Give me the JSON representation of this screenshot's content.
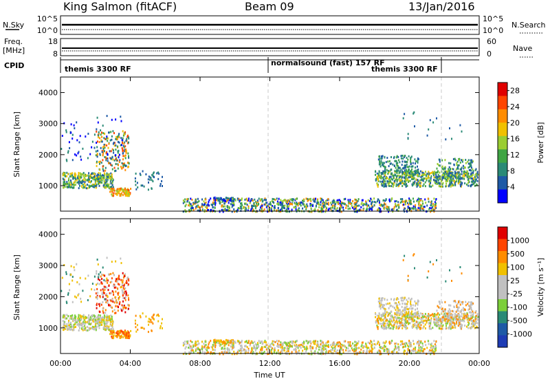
{
  "header": {
    "site": "King Salmon (fitACF)",
    "beam": "Beam 09",
    "date": "13/Jan/2016"
  },
  "strip_labels": {
    "nsky": "N.Sky",
    "freq": "Freq.",
    "freq_unit": "[MHz]",
    "cpid": "CPID",
    "nsearch": "N.Search",
    "nave": "Nave",
    "noise_hi": "10^5",
    "noise_lo": "10^0",
    "freq_hi": "18",
    "freq_lo": "8",
    "nave_hi": "60",
    "nave_lo": "0"
  },
  "cpid_segments": [
    {
      "label": "themis 3300 RF",
      "start_h": 0,
      "end_h": 12
    },
    {
      "label": "normalsound (fast) 157 RF",
      "start_h": 12,
      "end_h": 22
    },
    {
      "label": "themis 3300 RF",
      "start_h": 20.8,
      "end_h": 24
    }
  ],
  "colors": {
    "power": [
      "#0000ff",
      "#1e5aa6",
      "#2a8a76",
      "#3fa544",
      "#9acd32",
      "#f0c000",
      "#ff8c00",
      "#ff4500",
      "#e00000"
    ],
    "velocity": [
      "#e00000",
      "#ff4500",
      "#ff8c00",
      "#f0c000",
      "#c0c0c0",
      "#c0c0c0",
      "#7ccf3a",
      "#2a8a76",
      "#1e5aa6",
      "#1e3cb4"
    ]
  },
  "chart_data": [
    {
      "type": "heatmap",
      "title": "Power",
      "ylabel": "Slant Range [km]",
      "xlabel": "",
      "ylim": [
        180,
        4500
      ],
      "xlim": [
        0,
        24
      ],
      "yticks": [
        "1000",
        "2000",
        "3000",
        "4000"
      ],
      "xticks": [
        "00:00",
        "04:00",
        "08:00",
        "12:00",
        "16:00",
        "20:00",
        "00:00"
      ],
      "colorbar": {
        "label": "Power [dB]",
        "ticks": [
          "4",
          "8",
          "12",
          "16",
          "20",
          "24",
          "28"
        ],
        "range": [
          0,
          30
        ]
      }
    },
    {
      "type": "heatmap",
      "title": "Velocity",
      "ylabel": "Slant Range [km]",
      "xlabel": "Time UT",
      "ylim": [
        180,
        4500
      ],
      "xlim": [
        0,
        24
      ],
      "yticks": [
        "1000",
        "2000",
        "3000",
        "4000"
      ],
      "xticks": [
        "00:00",
        "04:00",
        "08:00",
        "12:00",
        "16:00",
        "20:00",
        "00:00"
      ],
      "colorbar": {
        "label": "Velocity [m s⁻¹]",
        "ticks": [
          "1000",
          "500",
          "100",
          "25",
          "-25",
          "-100",
          "-500",
          "-1000"
        ]
      }
    }
  ]
}
